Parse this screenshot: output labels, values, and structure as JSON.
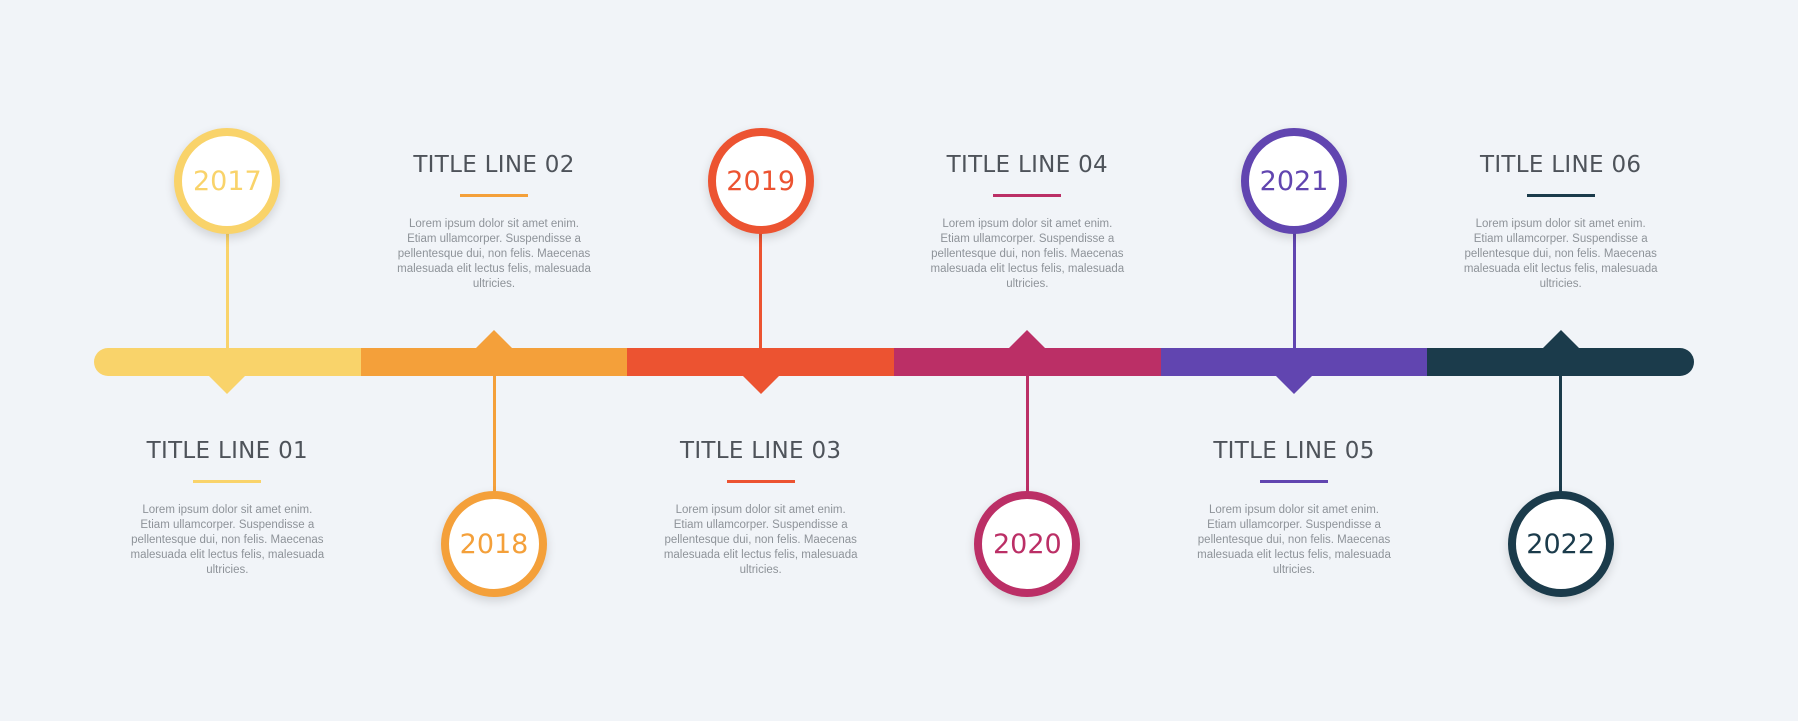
{
  "milestones": [
    {
      "year": "2017",
      "title": "TITLE LINE 01",
      "text": "Lorem ipsum dolor sit amet enim. Etiam ullamcorper. Suspendisse a pellentesque dui, non felis. Maecenas malesuada elit lectus felis, malesuada ultricies.",
      "color": "#f9d36a",
      "position": "top"
    },
    {
      "year": "2018",
      "title": "TITLE LINE 02",
      "text": "Lorem ipsum dolor sit amet enim. Etiam ullamcorper. Suspendisse a pellentesque dui, non felis. Maecenas malesuada elit lectus felis, malesuada ultricies.",
      "color": "#f4a03a",
      "position": "bottom"
    },
    {
      "year": "2019",
      "title": "TITLE LINE 03",
      "text": "Lorem ipsum dolor sit amet enim. Etiam ullamcorper. Suspendisse a pellentesque dui, non felis. Maecenas malesuada elit lectus felis, malesuada ultricies.",
      "color": "#ec5331",
      "position": "top"
    },
    {
      "year": "2020",
      "title": "TITLE LINE 04",
      "text": "Lorem ipsum dolor sit amet enim. Etiam ullamcorper. Suspendisse a pellentesque dui, non felis. Maecenas malesuada elit lectus felis, malesuada ultricies.",
      "color": "#bb2f66",
      "position": "bottom"
    },
    {
      "year": "2021",
      "title": "TITLE LINE 05",
      "text": "Lorem ipsum dolor sit amet enim. Etiam ullamcorper. Suspendisse a pellentesque dui, non felis. Maecenas malesuada elit lectus felis, malesuada ultricies.",
      "color": "#6145b0",
      "position": "top"
    },
    {
      "year": "2022",
      "title": "TITLE LINE 06",
      "text": "Lorem ipsum dolor sit amet enim. Etiam ullamcorper. Suspendisse a pellentesque dui, non felis. Maecenas malesuada elit lectus felis, malesuada ultricies.",
      "color": "#1b3b4b",
      "position": "bottom"
    }
  ]
}
